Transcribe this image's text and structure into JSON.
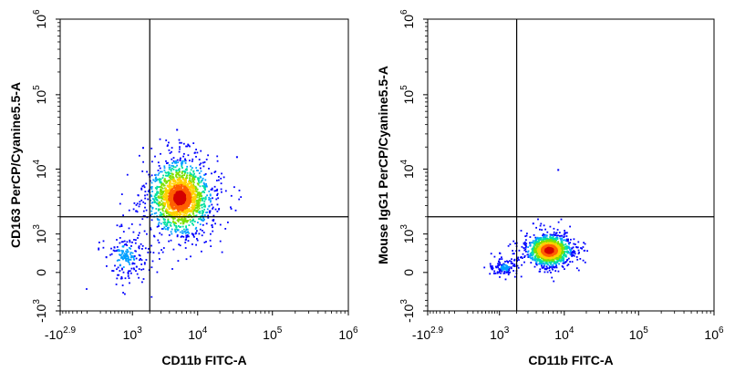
{
  "chart_data": [
    {
      "type": "scatter",
      "subtype": "flow-cytometry-density-dot-plot",
      "xlabel": "CD11b FITC-A",
      "ylabel": "CD163 PerCP/Cyanine5.5-A",
      "x_scale": "biexponential",
      "y_scale": "biexponential",
      "xlim": [
        -794,
        1000000
      ],
      "ylim": [
        -1000,
        1000000
      ],
      "x_ticks": [
        {
          "base": "-10",
          "exp": "2.9",
          "value": -794
        },
        {
          "base": "10",
          "exp": "3",
          "value": 1000
        },
        {
          "base": "10",
          "exp": "4",
          "value": 10000
        },
        {
          "base": "10",
          "exp": "5",
          "value": 100000
        },
        {
          "base": "10",
          "exp": "6",
          "value": 1000000
        }
      ],
      "y_ticks": [
        {
          "base": "-10",
          "exp": "3",
          "value": -1000
        },
        {
          "base": "0",
          "exp": "",
          "value": 0
        },
        {
          "base": "10",
          "exp": "3",
          "value": 1000
        },
        {
          "base": "10",
          "exp": "4",
          "value": 10000
        },
        {
          "base": "10",
          "exp": "5",
          "value": 100000
        },
        {
          "base": "10",
          "exp": "6",
          "value": 1000000
        }
      ],
      "quadrant_gate": {
        "x": 2000,
        "y": 2000
      },
      "clusters": [
        {
          "center_x": 5500,
          "center_y": 4000,
          "spread": "high",
          "events": 2600,
          "peak_color": "#d40000"
        },
        {
          "center_x": 700,
          "center_y": 300,
          "spread": "high",
          "events": 220,
          "peak_color": "#0000ff"
        }
      ],
      "outlier_events": [
        [
          5000,
          35000
        ],
        [
          1500,
          20000
        ],
        [
          33000,
          15000
        ]
      ],
      "density_colormap": [
        "#0000ff",
        "#00a0ff",
        "#00e0a0",
        "#7fe000",
        "#ffd000",
        "#ff6000",
        "#d40000"
      ],
      "grid": false
    },
    {
      "type": "scatter",
      "subtype": "flow-cytometry-density-dot-plot",
      "xlabel": "CD11b FITC-A",
      "ylabel": "Mouse IgG1 PerCP/Cyanine5.5-A",
      "x_scale": "biexponential",
      "y_scale": "biexponential",
      "xlim": [
        -794,
        1000000
      ],
      "ylim": [
        -1000,
        1000000
      ],
      "x_ticks": [
        {
          "base": "-10",
          "exp": "2.9",
          "value": -794
        },
        {
          "base": "10",
          "exp": "3",
          "value": 1000
        },
        {
          "base": "10",
          "exp": "4",
          "value": 10000
        },
        {
          "base": "10",
          "exp": "5",
          "value": 100000
        },
        {
          "base": "10",
          "exp": "6",
          "value": 1000000
        }
      ],
      "y_ticks": [
        {
          "base": "-10",
          "exp": "3",
          "value": -1000
        },
        {
          "base": "0",
          "exp": "",
          "value": 0
        },
        {
          "base": "10",
          "exp": "3",
          "value": 1000
        },
        {
          "base": "10",
          "exp": "4",
          "value": 10000
        },
        {
          "base": "10",
          "exp": "5",
          "value": 100000
        },
        {
          "base": "10",
          "exp": "6",
          "value": 1000000
        }
      ],
      "quadrant_gate": {
        "x": 2000,
        "y": 2000
      },
      "clusters": [
        {
          "center_x": 6000,
          "center_y": 450,
          "spread": "medium",
          "events": 2200,
          "peak_color": "#e03000"
        },
        {
          "center_x": 1200,
          "center_y": 80,
          "spread": "low",
          "events": 160,
          "peak_color": "#0000ff"
        }
      ],
      "outlier_events": [
        [
          8000,
          10000
        ],
        [
          3500,
          1600
        ]
      ],
      "density_colormap": [
        "#0000ff",
        "#00a0ff",
        "#00e0a0",
        "#7fe000",
        "#ffd000",
        "#ff6000",
        "#d40000"
      ],
      "grid": false
    }
  ]
}
